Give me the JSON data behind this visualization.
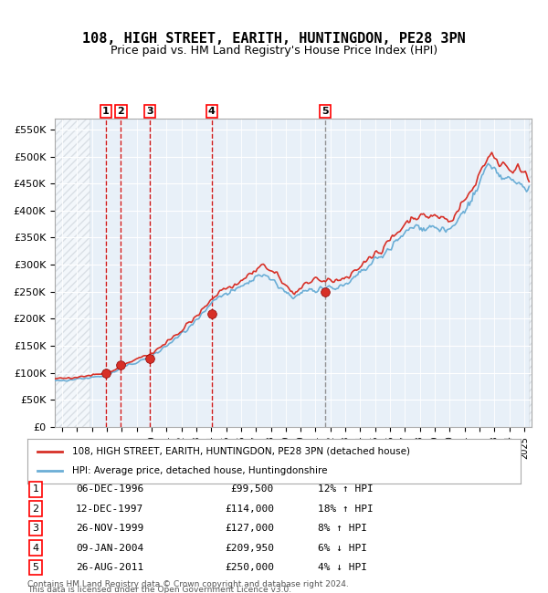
{
  "title": "108, HIGH STREET, EARITH, HUNTINGDON, PE28 3PN",
  "subtitle": "Price paid vs. HM Land Registry's House Price Index (HPI)",
  "legend_line1": "108, HIGH STREET, EARITH, HUNTINGDON, PE28 3PN (detached house)",
  "legend_line2": "HPI: Average price, detached house, Huntingdonshire",
  "footer1": "Contains HM Land Registry data © Crown copyright and database right 2024.",
  "footer2": "This data is licensed under the Open Government Licence v3.0.",
  "sales": [
    {
      "num": 1,
      "date_label": "06-DEC-1996",
      "price_label": "£99,500",
      "hpi_label": "12% ↑ HPI",
      "year": 1996.92,
      "price": 99500
    },
    {
      "num": 2,
      "date_label": "12-DEC-1997",
      "price_label": "£114,000",
      "hpi_label": "18% ↑ HPI",
      "year": 1997.94,
      "price": 114000
    },
    {
      "num": 3,
      "date_label": "26-NOV-1999",
      "price_label": "£127,000",
      "hpi_label": "8% ↑ HPI",
      "year": 1999.9,
      "price": 127000
    },
    {
      "num": 4,
      "date_label": "09-JAN-2004",
      "price_label": "£209,950",
      "hpi_label": "6% ↓ HPI",
      "year": 2004.03,
      "price": 209950
    },
    {
      "num": 5,
      "date_label": "26-AUG-2011",
      "price_label": "£250,000",
      "hpi_label": "4% ↓ HPI",
      "year": 2011.65,
      "price": 250000
    }
  ],
  "hpi_color": "#6baed6",
  "price_color": "#d73027",
  "vline_colors_red": [
    1,
    2,
    3,
    4
  ],
  "vline_colors_gray": [
    5
  ],
  "bg_color": "#ddeeff",
  "plot_bg": "#e8f0f8",
  "hatch_color": "#c0c8d0",
  "ylim": [
    0,
    570000
  ],
  "yticks": [
    0,
    50000,
    100000,
    150000,
    200000,
    250000,
    300000,
    350000,
    400000,
    450000,
    500000,
    550000
  ],
  "xlim_start": 1993.5,
  "xlim_end": 2025.5
}
